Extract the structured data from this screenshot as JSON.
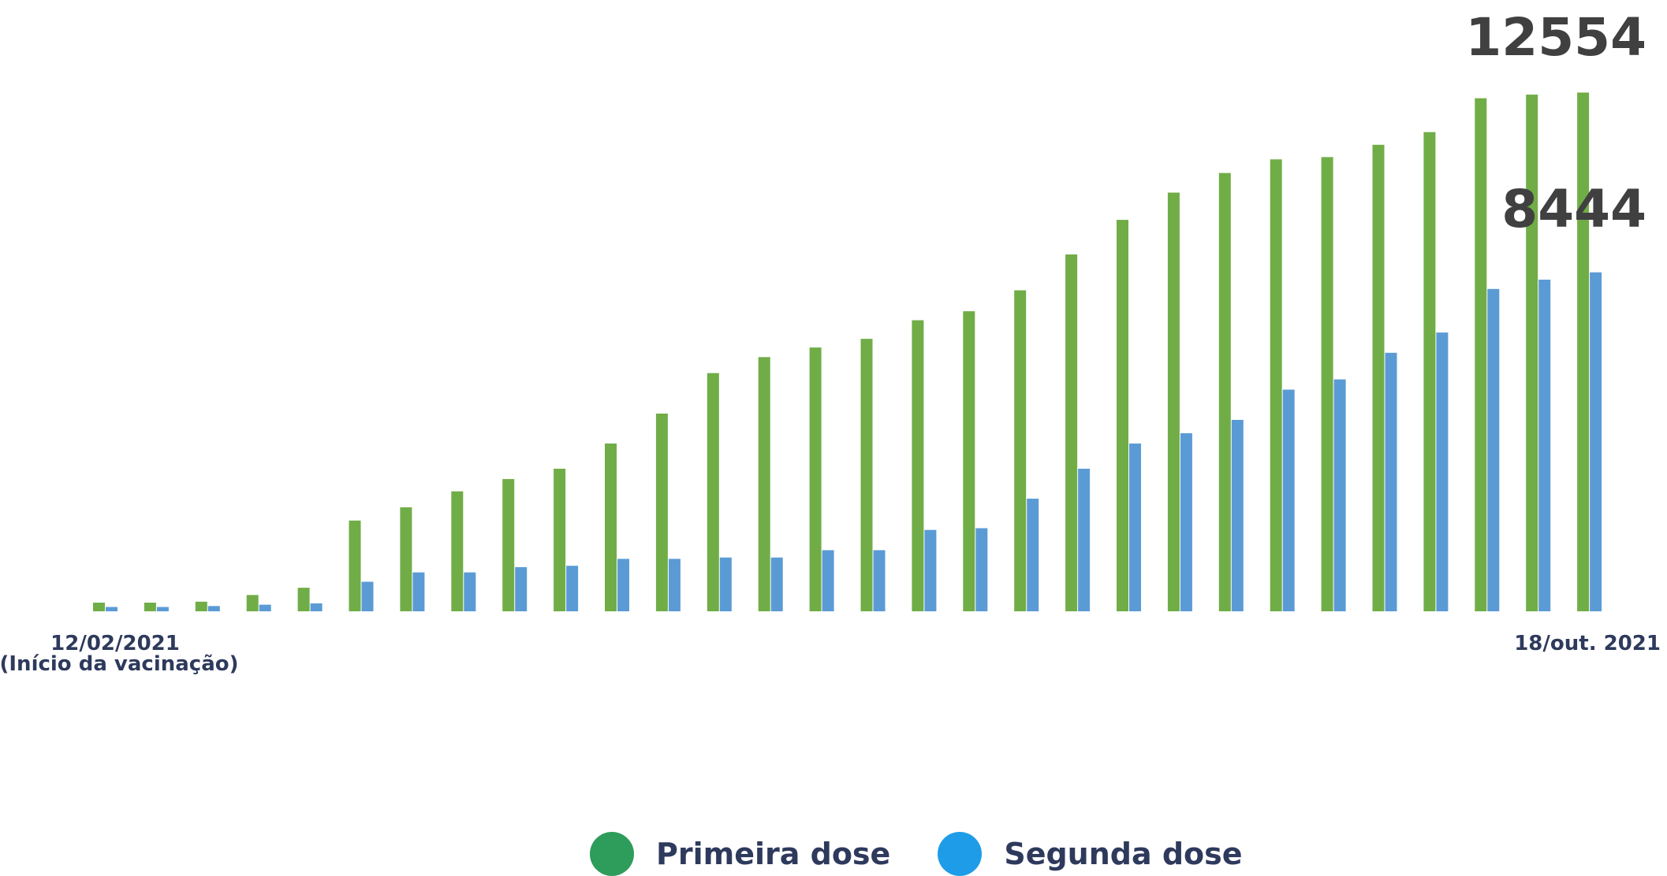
{
  "chart_data": {
    "type": "bar",
    "categories": [
      "",
      "",
      "",
      "",
      "",
      "",
      "",
      "",
      "",
      "",
      "",
      "",
      "",
      "",
      "",
      "",
      "",
      "",
      "",
      "",
      "",
      "",
      "",
      "",
      "",
      "",
      "",
      "",
      "",
      ""
    ],
    "x_start_label": "12/02/2021",
    "x_start_sublabel": "(Início da vacinação)",
    "x_end_label": "18/out. 2021",
    "series": [
      {
        "name": "Primeira dose",
        "color": "#70ad47",
        "legend_color": "#2e9c5b",
        "values": [
          260,
          260,
          290,
          490,
          710,
          2730,
          3130,
          3610,
          3980,
          4290,
          5050,
          5950,
          7170,
          7650,
          7940,
          8200,
          8760,
          9030,
          9660,
          10740,
          11780,
          12600,
          13190,
          13600,
          13670,
          14040,
          14420,
          15440,
          15550,
          15610
        ]
      },
      {
        "name": "Segunda dose",
        "color": "#5b9bd5",
        "legend_color": "#1e9ce8",
        "values": [
          130,
          130,
          160,
          200,
          240,
          890,
          1170,
          1170,
          1330,
          1370,
          1580,
          1580,
          1620,
          1620,
          1840,
          1840,
          2450,
          2500,
          3390,
          4290,
          5050,
          5360,
          5760,
          6670,
          6980,
          7780,
          8390,
          9700,
          9980,
          10200
        ]
      }
    ],
    "annotations": [
      {
        "text": "12554",
        "series": 0
      },
      {
        "text": "8444",
        "series": 1
      }
    ],
    "ylim": [
      0,
      16500
    ],
    "grid": false,
    "legend": "bottom-center"
  }
}
